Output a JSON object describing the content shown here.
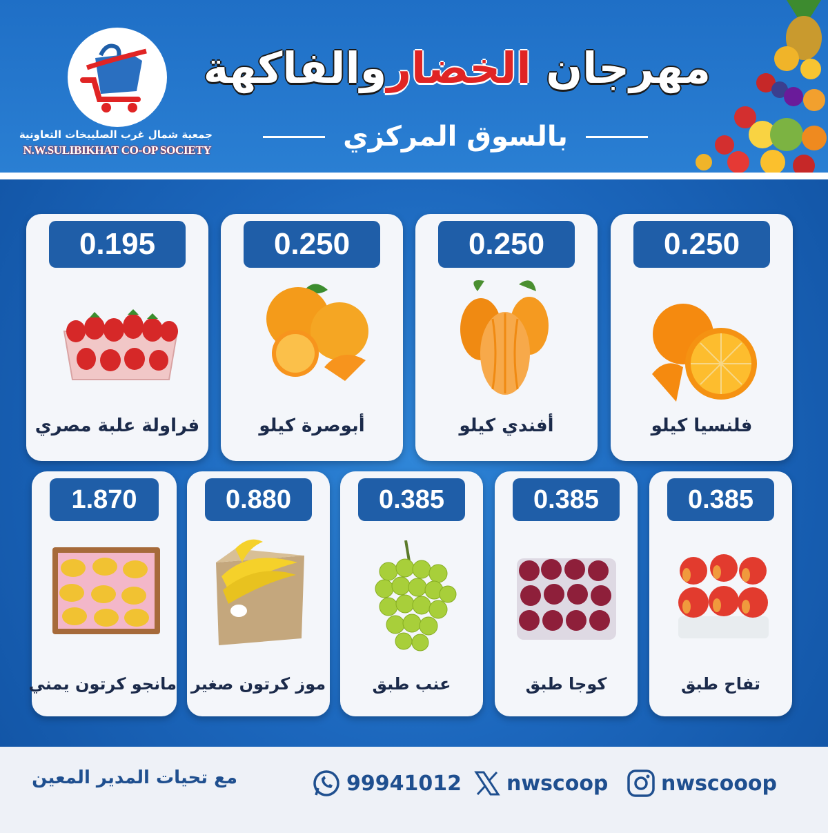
{
  "header": {
    "title_part1": "مهرجان",
    "title_part2": "الخضار",
    "title_part3": "والفاكهة",
    "subtitle": "بالسوق المركزي",
    "logo_arabic": "جمعية شمال غرب الصليبخات التعاونية",
    "logo_english": "N.W.SULIBIKHAT CO-OP SOCIETY"
  },
  "colors": {
    "brand_blue": "#1f5ea8",
    "accent_red": "#e02424",
    "background_blue": "#1c67bd"
  },
  "products_row1": [
    {
      "price": "0.195",
      "name": "فراولة علبة مصري",
      "icon": "strawberry-box-icon"
    },
    {
      "price": "0.250",
      "name": "أبوصرة كيلو",
      "icon": "navel-orange-icon"
    },
    {
      "price": "0.250",
      "name": "أفندي كيلو",
      "icon": "mandarin-icon"
    },
    {
      "price": "0.250",
      "name": "فلنسيا كيلو",
      "icon": "valencia-orange-icon"
    }
  ],
  "products_row2": [
    {
      "price": "1.870",
      "name": "مانجو كرتون يمني",
      "icon": "mango-box-icon"
    },
    {
      "price": "0.880",
      "name": "موز كرتون صغير",
      "icon": "banana-box-icon"
    },
    {
      "price": "0.385",
      "name": "عنب طبق",
      "icon": "grapes-icon"
    },
    {
      "price": "0.385",
      "name": "كوجا طبق",
      "icon": "plum-tray-icon"
    },
    {
      "price": "0.385",
      "name": "تفاح طبق",
      "icon": "apple-tray-icon"
    }
  ],
  "footer": {
    "greeting": "مع تحيات المدير المعين",
    "whatsapp": "99941012",
    "x_handle": "nwscoop",
    "instagram": "nwscooop"
  }
}
